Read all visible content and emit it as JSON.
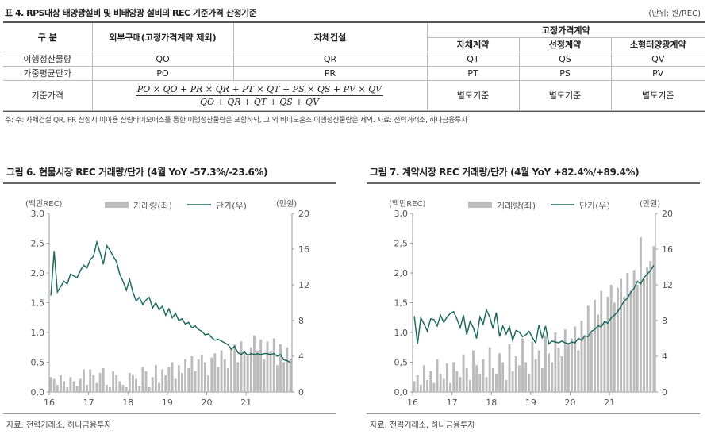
{
  "table": {
    "title": "표 4. RPS대상 태양광설비 및 비태양광 설비의 REC 기준가격 산정기준",
    "unit": "(단위: 원/REC)",
    "head": {
      "col0": "구 분",
      "col1": "외부구매(고정가격계약 제외)",
      "col2": "자체건설",
      "group": "고정가격계약",
      "sub1": "자체계약",
      "sub2": "선정계약",
      "sub3": "소형태양광계약"
    },
    "rows": [
      {
        "label": "이행정산물량",
        "c1": "QO",
        "c2": "QR",
        "c3": "QT",
        "c4": "QS",
        "c5": "QV"
      },
      {
        "label": "가중평균단가",
        "c1": "PO",
        "c2": "PR",
        "c3": "PT",
        "c4": "PS",
        "c5": "PV"
      },
      {
        "label": "기준가격",
        "c1_num": "PO × QO + PR × QR + PT × QT + PS × QS + PV × QV",
        "c1_den": "QO + QR + QT + QS + QV",
        "c3": "별도기준",
        "c4": "별도기준",
        "c5": "별도기준"
      }
    ],
    "note": "주: 주: 자체건설 QR, PR 산정시 미이용 산림바이오매스를 통한 이행정산물량은 포함하되, 그 외 바이오혼소 이행정산물량은 제외. 자료: 전력거래소, 하나금융투자"
  },
  "figures": [
    {
      "title": "그림 6. 현물시장 REC 거래량/단가 (4월 YoY -57.3%/-23.6%)",
      "source": "자료: 전력거래소, 하나금융투자",
      "chart_data": {
        "type": "bar",
        "left_axis_label": "(백만REC)",
        "right_axis_label": "(만원)",
        "legend": [
          "거래량(좌)",
          "단가(우)"
        ],
        "ylim_left": [
          0,
          3.0
        ],
        "ylim_right": [
          0,
          20
        ],
        "y_left_ticks": [
          "0,0",
          "0,5",
          "1,0",
          "1,5",
          "2,0",
          "2,5",
          "3,0"
        ],
        "y_right_ticks": [
          "0",
          "4",
          "8",
          "12",
          "16",
          "20"
        ],
        "x_ticks": [
          "16",
          "17",
          "18",
          "19",
          "20",
          "21"
        ],
        "x_start": 2016.0,
        "bar_color": "#bbbbbb",
        "line_color": "#1e6b5c",
        "volume": [
          0.25,
          0.22,
          0.12,
          0.28,
          0.18,
          0.08,
          0.25,
          0.18,
          0.1,
          0.22,
          0.38,
          0.12,
          0.38,
          0.28,
          0.15,
          0.32,
          0.4,
          0.12,
          0.08,
          0.35,
          0.28,
          0.18,
          0.12,
          0.08,
          0.32,
          0.28,
          0.22,
          0.1,
          0.42,
          0.35,
          0.08,
          0.25,
          0.45,
          0.15,
          0.38,
          0.28,
          0.42,
          0.5,
          0.22,
          0.45,
          0.32,
          0.55,
          0.4,
          0.6,
          0.35,
          0.55,
          0.62,
          0.5,
          0.28,
          0.58,
          0.65,
          0.42,
          0.7,
          0.55,
          0.4,
          0.75,
          0.8,
          0.5,
          0.85,
          0.65,
          0.6,
          0.75,
          0.95,
          0.7,
          0.88,
          0.55,
          0.85,
          0.68,
          0.9,
          0.45,
          0.8,
          0.5,
          0.75,
          0.55
        ],
        "price": [
          10.8,
          15.8,
          11.2,
          11.8,
          12.4,
          12.1,
          13.2,
          13.0,
          12.8,
          13.6,
          14.2,
          13.9,
          14.8,
          15.2,
          16.8,
          15.6,
          14.3,
          16.4,
          15.9,
          15.2,
          14.6,
          13.2,
          12.4,
          11.4,
          12.6,
          11.2,
          10.2,
          10.6,
          9.8,
          10.3,
          10.6,
          9.4,
          10.0,
          9.2,
          9.6,
          8.6,
          9.3,
          8.3,
          8.8,
          8.0,
          8.2,
          7.6,
          7.8,
          7.2,
          7.4,
          7.0,
          6.8,
          6.4,
          6.5,
          6.1,
          5.8,
          5.9,
          5.7,
          5.5,
          5.3,
          4.8,
          5.1,
          4.4,
          4.2,
          4.5,
          4.1,
          4.3,
          4.2,
          4.3,
          4.2,
          4.3,
          4.3,
          4.2,
          4.3,
          4.0,
          4.2,
          3.6,
          3.5,
          3.3
        ]
      }
    },
    {
      "title": "그림 7. 계약시장 REC 거래량/단가 (4월 YoY +82.4%/+89.4%)",
      "source": "자료: 전력거래소, 하나금융투자",
      "chart_data": {
        "type": "bar",
        "left_axis_label": "(백만REC)",
        "right_axis_label": "(만원)",
        "legend": [
          "거래량(좌)",
          "단가(우)"
        ],
        "ylim_left": [
          0,
          3.0
        ],
        "ylim_right": [
          0,
          20
        ],
        "y_left_ticks": [
          "0,0",
          "0,5",
          "1,0",
          "1,5",
          "2,0",
          "2,5",
          "3,0"
        ],
        "y_right_ticks": [
          "0",
          "4",
          "8",
          "12",
          "16",
          "20"
        ],
        "x_ticks": [
          "16",
          "17",
          "18",
          "19",
          "20",
          "21"
        ],
        "x_start": 2016.0,
        "bar_color": "#bbbbbb",
        "line_color": "#1e6b5c",
        "volume": [
          0.18,
          0.28,
          0.12,
          0.45,
          0.2,
          0.35,
          0.15,
          0.55,
          0.3,
          0.22,
          0.48,
          0.15,
          0.5,
          0.35,
          0.25,
          0.62,
          0.4,
          0.2,
          0.7,
          0.45,
          0.3,
          0.55,
          0.25,
          0.75,
          0.4,
          0.3,
          0.65,
          0.5,
          0.2,
          0.8,
          0.35,
          0.6,
          0.45,
          0.9,
          0.5,
          0.3,
          0.85,
          0.55,
          0.7,
          0.4,
          0.95,
          0.65,
          0.5,
          1.0,
          0.75,
          0.6,
          1.05,
          0.8,
          0.9,
          1.1,
          0.7,
          1.2,
          0.95,
          1.45,
          1.0,
          1.55,
          1.3,
          1.7,
          1.2,
          1.6,
          1.8,
          1.5,
          1.75,
          1.9,
          1.6,
          2.0,
          1.7,
          2.05,
          1.8,
          2.6,
          1.9,
          2.1,
          2.2,
          2.45
        ],
        "price": [
          8.5,
          5.4,
          8.3,
          7.6,
          6.8,
          8.2,
          8.1,
          7.4,
          8.6,
          7.8,
          8.4,
          8.8,
          9.0,
          8.2,
          7.2,
          8.6,
          6.4,
          7.9,
          7.2,
          6.0,
          8.4,
          7.6,
          9.2,
          8.4,
          7.1,
          8.9,
          6.2,
          7.4,
          6.5,
          7.3,
          5.8,
          6.9,
          6.7,
          6.2,
          6.4,
          6.8,
          6.1,
          5.5,
          7.5,
          6.0,
          7.4,
          5.4,
          5.7,
          5.6,
          5.5,
          5.7,
          5.5,
          5.4,
          5.6,
          5.5,
          6.0,
          5.8,
          6.3,
          6.2,
          6.8,
          7.0,
          7.4,
          7.3,
          7.9,
          7.7,
          8.3,
          8.6,
          9.0,
          9.6,
          10.2,
          10.5,
          11.2,
          11.6,
          12.4,
          12.1,
          12.8,
          13.2,
          13.6,
          14.2
        ]
      }
    }
  ]
}
